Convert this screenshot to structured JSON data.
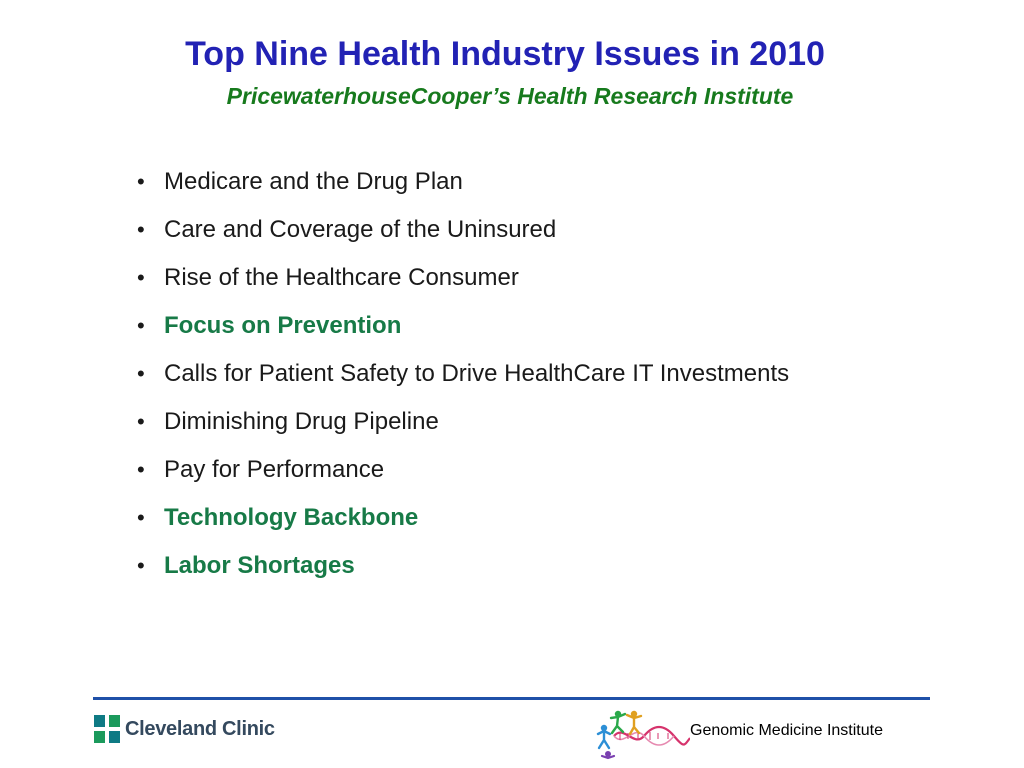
{
  "slide": {
    "title": "Top Nine Health Industry Issues in 2010",
    "subtitle": "PricewaterhouseCooper’s Health Research Institute",
    "bullet_glyph": "•",
    "bullets": [
      {
        "text": "Medicare and the Drug Plan",
        "highlight": false
      },
      {
        "text": "Care and Coverage of the Uninsured",
        "highlight": false
      },
      {
        "text": "Rise of the Healthcare Consumer",
        "highlight": false
      },
      {
        "text": "Focus on Prevention",
        "highlight": true
      },
      {
        "text": "Calls for Patient Safety to Drive HealthCare IT Investments",
        "highlight": false
      },
      {
        "text": "Diminishing Drug Pipeline",
        "highlight": false
      },
      {
        "text": "Pay for Performance",
        "highlight": false
      },
      {
        "text": "Technology Backbone",
        "highlight": true
      },
      {
        "text": "Labor Shortages",
        "highlight": true
      }
    ]
  },
  "footer": {
    "left_logo_text": "Cleveland Clinic",
    "left_logo_icon": "cleveland-clinic-cross-icon",
    "right_logo_icon": "dna-people-icon",
    "right_label": "Genomic Medicine Institute"
  },
  "colors": {
    "title": "#2222b4",
    "subtitle": "#177a1d",
    "highlight": "#177a47",
    "rule": "#1f50a8"
  }
}
